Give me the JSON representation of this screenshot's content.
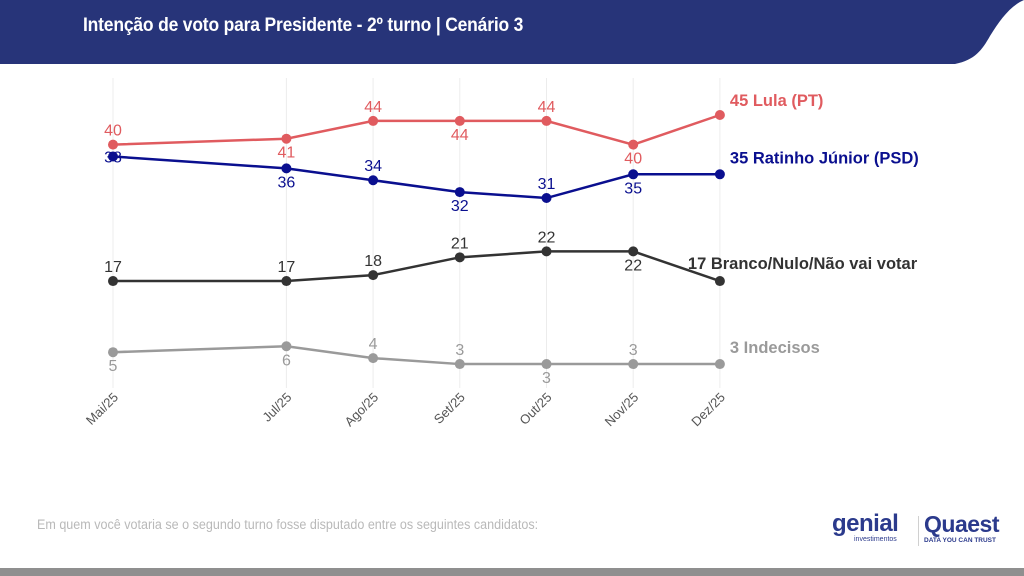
{
  "header": {
    "title": "Intenção de voto para Presidente - 2º turno | Cenário 3",
    "background_color": "#273479"
  },
  "chart_data": {
    "type": "line",
    "title": "Intenção de voto para Presidente - 2º turno | Cenário 3",
    "xlabel": "",
    "ylabel": "",
    "x": [
      "Mai/25",
      "Jul/25",
      "Ago/25",
      "Set/25",
      "Out/25",
      "Nov/25",
      "Dez/25"
    ],
    "ylim": [
      0,
      50
    ],
    "grid": "vertical",
    "legend": "end-labels-right",
    "series": [
      {
        "name": "Lula (PT)",
        "end_label": "45 Lula (PT)",
        "color": "#e05b5f",
        "values": [
          40,
          41,
          44,
          44,
          44,
          40,
          45
        ],
        "label_positions": [
          "above",
          "below",
          "above",
          "below",
          "above",
          "below",
          "none"
        ]
      },
      {
        "name": "Ratinho Júnior (PSD)",
        "end_label": "35 Ratinho Júnior (PSD)",
        "color": "#0a0f8f",
        "values": [
          38,
          36,
          34,
          32,
          31,
          35,
          35
        ],
        "label_positions": [
          "on",
          "below",
          "above",
          "below",
          "above",
          "below",
          "none"
        ]
      },
      {
        "name": "Branco/Nulo/Não vai votar",
        "end_label": "17 Branco/Nulo/Não vai votar",
        "color": "#333333",
        "values": [
          17,
          17,
          18,
          21,
          22,
          22,
          17
        ],
        "label_positions": [
          "above",
          "above",
          "above",
          "above",
          "above",
          "below",
          "none"
        ]
      },
      {
        "name": "Indecisos",
        "end_label": "3 Indecisos",
        "color": "#9a9a9a",
        "values": [
          5,
          6,
          4,
          3,
          3,
          3,
          3
        ],
        "label_positions": [
          "below",
          "below",
          "above",
          "above",
          "below",
          "above",
          "none"
        ]
      }
    ]
  },
  "footer": {
    "question": "Em quem você votaria se o segundo turno fosse disputado entre os seguintes candidatos:",
    "logo_genial": "genial",
    "logo_genial_sub": "investimentos",
    "logo_quaest": "Quaest",
    "logo_quaest_sub": "DATA YOU CAN TRUST"
  }
}
